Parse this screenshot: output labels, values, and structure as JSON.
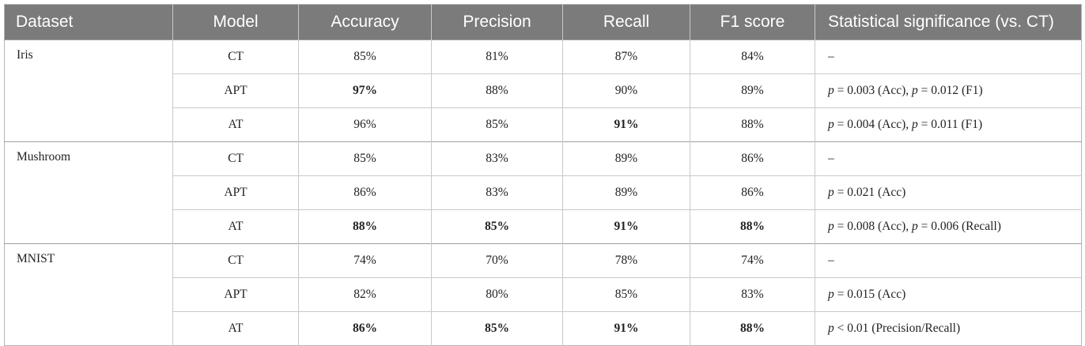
{
  "table": {
    "headers": [
      "Dataset",
      "Model",
      "Accuracy",
      "Precision",
      "Recall",
      "F1 score",
      "Statistical significance (vs. CT)"
    ],
    "groups": [
      {
        "dataset": "Iris",
        "rows": [
          {
            "model": "CT",
            "accuracy": "85%",
            "precision": "81%",
            "recall": "87%",
            "f1": "84%",
            "significance": "–"
          },
          {
            "model": "APT",
            "accuracy": "97%",
            "precision": "88%",
            "recall": "90%",
            "f1": "89%",
            "significance": "p = 0.003 (Acc), p = 0.012 (F1)"
          },
          {
            "model": "AT",
            "accuracy": "96%",
            "precision": "85%",
            "recall": "91%",
            "f1": "88%",
            "significance": "p = 0.004 (Acc), p = 0.011 (F1)"
          }
        ]
      },
      {
        "dataset": "Mushroom",
        "rows": [
          {
            "model": "CT",
            "accuracy": "85%",
            "precision": "83%",
            "recall": "89%",
            "f1": "86%",
            "significance": "–"
          },
          {
            "model": "APT",
            "accuracy": "86%",
            "precision": "83%",
            "recall": "89%",
            "f1": "86%",
            "significance": "p = 0.021 (Acc)"
          },
          {
            "model": "AT",
            "accuracy": "88%",
            "precision": "85%",
            "recall": "91%",
            "f1": "88%",
            "significance": "p = 0.008 (Acc), p = 0.006 (Recall)"
          }
        ]
      },
      {
        "dataset": "MNIST",
        "rows": [
          {
            "model": "CT",
            "accuracy": "74%",
            "precision": "70%",
            "recall": "78%",
            "f1": "74%",
            "significance": "–"
          },
          {
            "model": "APT",
            "accuracy": "82%",
            "precision": "80%",
            "recall": "85%",
            "f1": "83%",
            "significance": "p = 0.015 (Acc)"
          },
          {
            "model": "AT",
            "accuracy": "86%",
            "precision": "85%",
            "recall": "91%",
            "f1": "88%",
            "significance": "p < 0.01 (Precision/Recall)"
          }
        ]
      }
    ]
  }
}
